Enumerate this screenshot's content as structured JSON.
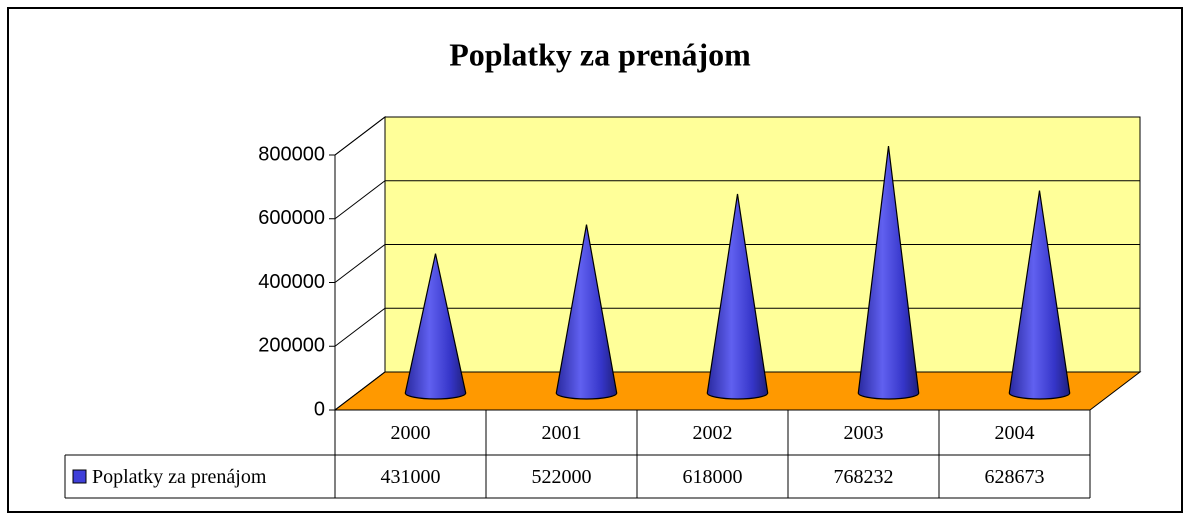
{
  "chart_data": {
    "type": "cone3d",
    "title": "Poplatky za prenájom",
    "categories": [
      "2000",
      "2001",
      "2002",
      "2003",
      "2004"
    ],
    "series": [
      {
        "name": "Poplatky za prenájom",
        "color": "#3f3fd9",
        "values": [
          431000,
          522000,
          618000,
          768232,
          628673
        ]
      }
    ],
    "ylim": [
      0,
      800000
    ],
    "yticks": [
      0,
      200000,
      400000,
      600000,
      800000
    ],
    "grid": true,
    "wall_color": "#ffff99",
    "floor_color": "#ff9900",
    "data_table": true
  }
}
